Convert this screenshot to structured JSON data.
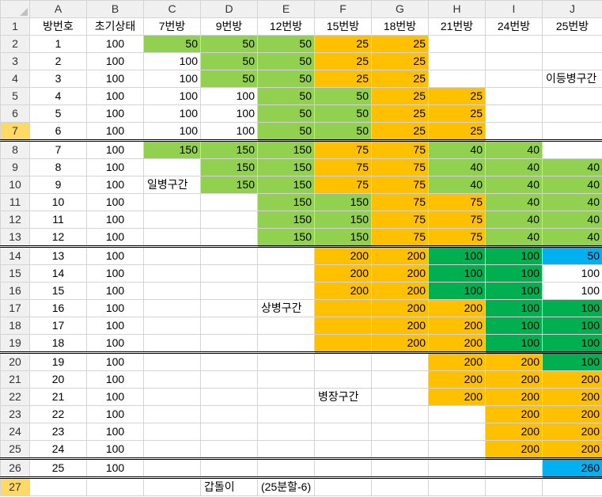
{
  "columns": [
    "A",
    "B",
    "C",
    "D",
    "E",
    "F",
    "G",
    "H",
    "I",
    "J"
  ],
  "rows": [
    {
      "n": "1",
      "cells": [
        {
          "v": "방번호",
          "a": "ctr"
        },
        {
          "v": "초기상태",
          "a": "ctr"
        },
        {
          "v": "7번방",
          "a": "ctr"
        },
        {
          "v": "9번방",
          "a": "ctr"
        },
        {
          "v": "12번방",
          "a": "ctr"
        },
        {
          "v": "15번방",
          "a": "ctr"
        },
        {
          "v": "18번방",
          "a": "ctr"
        },
        {
          "v": "21번방",
          "a": "ctr"
        },
        {
          "v": "24번방",
          "a": "ctr"
        },
        {
          "v": "25번방",
          "a": "ctr"
        }
      ]
    },
    {
      "n": "2",
      "cells": [
        {
          "v": "1",
          "a": "ctr"
        },
        {
          "v": "100",
          "a": "ctr"
        },
        {
          "v": "50",
          "c": "g"
        },
        {
          "v": "50",
          "c": "g"
        },
        {
          "v": "50",
          "c": "g"
        },
        {
          "v": "25",
          "c": "o"
        },
        {
          "v": "25",
          "c": "o"
        },
        {
          "v": ""
        },
        {
          "v": ""
        },
        {
          "v": ""
        }
      ]
    },
    {
      "n": "3",
      "cells": [
        {
          "v": "2",
          "a": "ctr"
        },
        {
          "v": "100",
          "a": "ctr"
        },
        {
          "v": "100"
        },
        {
          "v": "50",
          "c": "g"
        },
        {
          "v": "50",
          "c": "g"
        },
        {
          "v": "25",
          "c": "o"
        },
        {
          "v": "25",
          "c": "o"
        },
        {
          "v": ""
        },
        {
          "v": ""
        },
        {
          "v": ""
        }
      ]
    },
    {
      "n": "4",
      "cells": [
        {
          "v": "3",
          "a": "ctr"
        },
        {
          "v": "100",
          "a": "ctr"
        },
        {
          "v": "100"
        },
        {
          "v": "50",
          "c": "g"
        },
        {
          "v": "50",
          "c": "g"
        },
        {
          "v": "25",
          "c": "o"
        },
        {
          "v": "25",
          "c": "o"
        },
        {
          "v": ""
        },
        {
          "v": ""
        },
        {
          "v": "이등병구간",
          "a": "left"
        }
      ]
    },
    {
      "n": "5",
      "cells": [
        {
          "v": "4",
          "a": "ctr"
        },
        {
          "v": "100",
          "a": "ctr"
        },
        {
          "v": "100"
        },
        {
          "v": "100"
        },
        {
          "v": "50",
          "c": "g"
        },
        {
          "v": "50",
          "c": "g"
        },
        {
          "v": "25",
          "c": "o"
        },
        {
          "v": "25",
          "c": "o"
        },
        {
          "v": ""
        },
        {
          "v": ""
        }
      ]
    },
    {
      "n": "6",
      "cells": [
        {
          "v": "5",
          "a": "ctr"
        },
        {
          "v": "100",
          "a": "ctr"
        },
        {
          "v": "100"
        },
        {
          "v": "100"
        },
        {
          "v": "50",
          "c": "g"
        },
        {
          "v": "50",
          "c": "g"
        },
        {
          "v": "25",
          "c": "o"
        },
        {
          "v": "25",
          "c": "o"
        },
        {
          "v": ""
        },
        {
          "v": ""
        }
      ]
    },
    {
      "n": "7",
      "sel": true,
      "sep": true,
      "cells": [
        {
          "v": "6",
          "a": "ctr"
        },
        {
          "v": "100",
          "a": "ctr"
        },
        {
          "v": "100"
        },
        {
          "v": "100"
        },
        {
          "v": "50",
          "c": "g"
        },
        {
          "v": "50",
          "c": "g"
        },
        {
          "v": "25",
          "c": "o"
        },
        {
          "v": "25",
          "c": "o"
        },
        {
          "v": ""
        },
        {
          "v": ""
        }
      ]
    },
    {
      "n": "8",
      "cells": [
        {
          "v": "7",
          "a": "ctr"
        },
        {
          "v": "100",
          "a": "ctr"
        },
        {
          "v": "150",
          "c": "g"
        },
        {
          "v": "150",
          "c": "g"
        },
        {
          "v": "150",
          "c": "g"
        },
        {
          "v": "75",
          "c": "o"
        },
        {
          "v": "75",
          "c": "o"
        },
        {
          "v": "40",
          "c": "g"
        },
        {
          "v": "40",
          "c": "g"
        },
        {
          "v": ""
        }
      ]
    },
    {
      "n": "9",
      "cells": [
        {
          "v": "8",
          "a": "ctr"
        },
        {
          "v": "100",
          "a": "ctr"
        },
        {
          "v": ""
        },
        {
          "v": "150",
          "c": "g"
        },
        {
          "v": "150",
          "c": "g"
        },
        {
          "v": "75",
          "c": "o"
        },
        {
          "v": "75",
          "c": "o"
        },
        {
          "v": "40",
          "c": "g"
        },
        {
          "v": "40",
          "c": "g"
        },
        {
          "v": "40",
          "c": "g"
        }
      ]
    },
    {
      "n": "10",
      "cells": [
        {
          "v": "9",
          "a": "ctr"
        },
        {
          "v": "100",
          "a": "ctr"
        },
        {
          "v": "일병구간",
          "a": "left"
        },
        {
          "v": "150",
          "c": "g"
        },
        {
          "v": "150",
          "c": "g"
        },
        {
          "v": "75",
          "c": "o"
        },
        {
          "v": "75",
          "c": "o"
        },
        {
          "v": "40",
          "c": "g"
        },
        {
          "v": "40",
          "c": "g"
        },
        {
          "v": "40",
          "c": "g"
        }
      ]
    },
    {
      "n": "11",
      "cells": [
        {
          "v": "10",
          "a": "ctr"
        },
        {
          "v": "100",
          "a": "ctr"
        },
        {
          "v": ""
        },
        {
          "v": ""
        },
        {
          "v": "150",
          "c": "g"
        },
        {
          "v": "150",
          "c": "g"
        },
        {
          "v": "75",
          "c": "o"
        },
        {
          "v": "75",
          "c": "o"
        },
        {
          "v": "40",
          "c": "g"
        },
        {
          "v": "40",
          "c": "g"
        }
      ]
    },
    {
      "n": "12",
      "cells": [
        {
          "v": "11",
          "a": "ctr"
        },
        {
          "v": "100",
          "a": "ctr"
        },
        {
          "v": ""
        },
        {
          "v": ""
        },
        {
          "v": "150",
          "c": "g"
        },
        {
          "v": "150",
          "c": "g"
        },
        {
          "v": "75",
          "c": "o"
        },
        {
          "v": "75",
          "c": "o"
        },
        {
          "v": "40",
          "c": "g"
        },
        {
          "v": "40",
          "c": "g"
        }
      ]
    },
    {
      "n": "13",
      "sep": true,
      "cells": [
        {
          "v": "12",
          "a": "ctr"
        },
        {
          "v": "100",
          "a": "ctr"
        },
        {
          "v": ""
        },
        {
          "v": ""
        },
        {
          "v": "150",
          "c": "g"
        },
        {
          "v": "150",
          "c": "g"
        },
        {
          "v": "75",
          "c": "o"
        },
        {
          "v": "75",
          "c": "o"
        },
        {
          "v": "40",
          "c": "g"
        },
        {
          "v": "40",
          "c": "g"
        }
      ]
    },
    {
      "n": "14",
      "cells": [
        {
          "v": "13",
          "a": "ctr"
        },
        {
          "v": "100",
          "a": "ctr"
        },
        {
          "v": ""
        },
        {
          "v": ""
        },
        {
          "v": ""
        },
        {
          "v": "200",
          "c": "o"
        },
        {
          "v": "200",
          "c": "o"
        },
        {
          "v": "100",
          "c": "d"
        },
        {
          "v": "100",
          "c": "d"
        },
        {
          "v": "50",
          "c": "b"
        }
      ]
    },
    {
      "n": "15",
      "cells": [
        {
          "v": "14",
          "a": "ctr"
        },
        {
          "v": "100",
          "a": "ctr"
        },
        {
          "v": ""
        },
        {
          "v": ""
        },
        {
          "v": ""
        },
        {
          "v": "200",
          "c": "o"
        },
        {
          "v": "200",
          "c": "o"
        },
        {
          "v": "100",
          "c": "d"
        },
        {
          "v": "100",
          "c": "d"
        },
        {
          "v": "100"
        }
      ]
    },
    {
      "n": "16",
      "cells": [
        {
          "v": "15",
          "a": "ctr"
        },
        {
          "v": "100",
          "a": "ctr"
        },
        {
          "v": ""
        },
        {
          "v": ""
        },
        {
          "v": ""
        },
        {
          "v": "200",
          "c": "o"
        },
        {
          "v": "200",
          "c": "o"
        },
        {
          "v": "100",
          "c": "d"
        },
        {
          "v": "100",
          "c": "d"
        },
        {
          "v": "100"
        }
      ]
    },
    {
      "n": "17",
      "cells": [
        {
          "v": "16",
          "a": "ctr"
        },
        {
          "v": "100",
          "a": "ctr"
        },
        {
          "v": ""
        },
        {
          "v": ""
        },
        {
          "v": "상병구간",
          "a": "left"
        },
        {
          "v": "",
          "c": "o"
        },
        {
          "v": "200",
          "c": "o"
        },
        {
          "v": "200",
          "c": "o"
        },
        {
          "v": "100",
          "c": "d"
        },
        {
          "v": "100",
          "c": "d"
        }
      ]
    },
    {
      "n": "18",
      "cells": [
        {
          "v": "17",
          "a": "ctr"
        },
        {
          "v": "100",
          "a": "ctr"
        },
        {
          "v": ""
        },
        {
          "v": ""
        },
        {
          "v": ""
        },
        {
          "v": "",
          "c": "o"
        },
        {
          "v": "200",
          "c": "o"
        },
        {
          "v": "200",
          "c": "o"
        },
        {
          "v": "100",
          "c": "d"
        },
        {
          "v": "100",
          "c": "d"
        }
      ]
    },
    {
      "n": "19",
      "sep": true,
      "cells": [
        {
          "v": "18",
          "a": "ctr"
        },
        {
          "v": "100",
          "a": "ctr"
        },
        {
          "v": ""
        },
        {
          "v": ""
        },
        {
          "v": ""
        },
        {
          "v": "",
          "c": "o"
        },
        {
          "v": "200",
          "c": "o"
        },
        {
          "v": "200",
          "c": "o"
        },
        {
          "v": "100",
          "c": "d"
        },
        {
          "v": "100",
          "c": "d"
        }
      ]
    },
    {
      "n": "20",
      "cells": [
        {
          "v": "19",
          "a": "ctr"
        },
        {
          "v": "100",
          "a": "ctr"
        },
        {
          "v": ""
        },
        {
          "v": ""
        },
        {
          "v": ""
        },
        {
          "v": ""
        },
        {
          "v": ""
        },
        {
          "v": "200",
          "c": "o"
        },
        {
          "v": "200",
          "c": "o"
        },
        {
          "v": "100",
          "c": "d"
        }
      ]
    },
    {
      "n": "21",
      "cells": [
        {
          "v": "20",
          "a": "ctr"
        },
        {
          "v": "100",
          "a": "ctr"
        },
        {
          "v": ""
        },
        {
          "v": ""
        },
        {
          "v": ""
        },
        {
          "v": ""
        },
        {
          "v": ""
        },
        {
          "v": "200",
          "c": "o"
        },
        {
          "v": "200",
          "c": "o"
        },
        {
          "v": "200",
          "c": "o"
        }
      ]
    },
    {
      "n": "22",
      "cells": [
        {
          "v": "21",
          "a": "ctr"
        },
        {
          "v": "100",
          "a": "ctr"
        },
        {
          "v": ""
        },
        {
          "v": ""
        },
        {
          "v": ""
        },
        {
          "v": "병장구간",
          "a": "left"
        },
        {
          "v": ""
        },
        {
          "v": "200",
          "c": "o"
        },
        {
          "v": "200",
          "c": "o"
        },
        {
          "v": "200",
          "c": "o"
        }
      ]
    },
    {
      "n": "23",
      "cells": [
        {
          "v": "22",
          "a": "ctr"
        },
        {
          "v": "100",
          "a": "ctr"
        },
        {
          "v": ""
        },
        {
          "v": ""
        },
        {
          "v": ""
        },
        {
          "v": ""
        },
        {
          "v": ""
        },
        {
          "v": ""
        },
        {
          "v": "200",
          "c": "o"
        },
        {
          "v": "200",
          "c": "o"
        }
      ]
    },
    {
      "n": "24",
      "cells": [
        {
          "v": "23",
          "a": "ctr"
        },
        {
          "v": "100",
          "a": "ctr"
        },
        {
          "v": ""
        },
        {
          "v": ""
        },
        {
          "v": ""
        },
        {
          "v": ""
        },
        {
          "v": ""
        },
        {
          "v": ""
        },
        {
          "v": "200",
          "c": "o"
        },
        {
          "v": "200",
          "c": "o"
        }
      ]
    },
    {
      "n": "25",
      "sep": true,
      "cells": [
        {
          "v": "24",
          "a": "ctr"
        },
        {
          "v": "100",
          "a": "ctr"
        },
        {
          "v": ""
        },
        {
          "v": ""
        },
        {
          "v": ""
        },
        {
          "v": ""
        },
        {
          "v": ""
        },
        {
          "v": ""
        },
        {
          "v": "200",
          "c": "o"
        },
        {
          "v": "200",
          "c": "o"
        }
      ]
    },
    {
      "n": "26",
      "sep": true,
      "cells": [
        {
          "v": "25",
          "a": "ctr"
        },
        {
          "v": "100",
          "a": "ctr"
        },
        {
          "v": ""
        },
        {
          "v": ""
        },
        {
          "v": ""
        },
        {
          "v": ""
        },
        {
          "v": ""
        },
        {
          "v": ""
        },
        {
          "v": ""
        },
        {
          "v": "260",
          "c": "b"
        }
      ]
    },
    {
      "n": "27",
      "sel": true,
      "cells": [
        {
          "v": ""
        },
        {
          "v": ""
        },
        {
          "v": ""
        },
        {
          "v": "갑돌이",
          "a": "left"
        },
        {
          "v": "(25분할-6)",
          "a": "left"
        },
        {
          "v": ""
        },
        {
          "v": ""
        },
        {
          "v": ""
        },
        {
          "v": ""
        },
        {
          "v": ""
        }
      ]
    }
  ],
  "colors": {
    "green": "#92d050",
    "orange": "#ffc000",
    "dark_green": "#00b050",
    "blue": "#00b0f0",
    "selected_header": "#ffd966"
  }
}
